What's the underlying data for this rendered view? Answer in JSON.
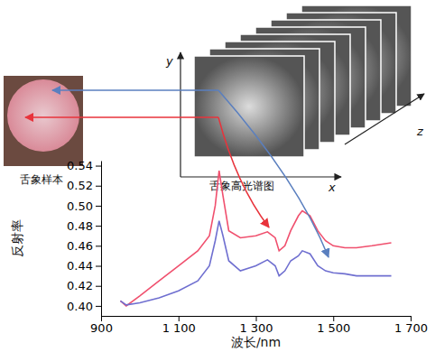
{
  "chart_data": {
    "type": "line",
    "x_label": "波长/nm",
    "y_label": "反射率",
    "x": [
      950,
      965,
      1000,
      1050,
      1100,
      1150,
      1180,
      1195,
      1205,
      1215,
      1230,
      1260,
      1300,
      1330,
      1350,
      1360,
      1375,
      1390,
      1410,
      1420,
      1440,
      1460,
      1480,
      1500,
      1530,
      1560,
      1600,
      1650
    ],
    "series": [
      {
        "color": "#f0506e",
        "values": [
          0.405,
          0.4,
          0.41,
          0.425,
          0.44,
          0.455,
          0.47,
          0.5,
          0.535,
          0.51,
          0.475,
          0.468,
          0.47,
          0.474,
          0.468,
          0.455,
          0.46,
          0.475,
          0.49,
          0.495,
          0.49,
          0.475,
          0.465,
          0.46,
          0.458,
          0.458,
          0.46,
          0.463
        ]
      },
      {
        "color": "#6f6fd0",
        "values": [
          0.405,
          0.401,
          0.403,
          0.408,
          0.415,
          0.425,
          0.44,
          0.465,
          0.485,
          0.47,
          0.445,
          0.435,
          0.44,
          0.446,
          0.44,
          0.43,
          0.435,
          0.445,
          0.45,
          0.455,
          0.452,
          0.44,
          0.435,
          0.433,
          0.432,
          0.43,
          0.43,
          0.43
        ]
      }
    ],
    "xlim": [
      900,
      1700
    ],
    "xticks": [
      900,
      {
        "value": 1100,
        "label": "1 100"
      },
      {
        "value": 1300,
        "label": "1 300"
      },
      {
        "value": 1500,
        "label": "1 500"
      },
      {
        "value": 1700,
        "label": "1 700"
      }
    ],
    "ylim": [
      0.39,
      0.545
    ],
    "yticks": [
      {
        "value": 0.4,
        "label": "0.40"
      },
      0.42,
      0.44,
      0.46,
      0.48,
      {
        "value": 0.5,
        "label": "0.50"
      },
      0.52,
      0.54
    ],
    "grid": false
  },
  "figure": {
    "sample_label": "舌象样本",
    "cube_label": "舌象高光谱图",
    "axis_x": "x",
    "axis_y": "y",
    "axis_z": "z"
  }
}
